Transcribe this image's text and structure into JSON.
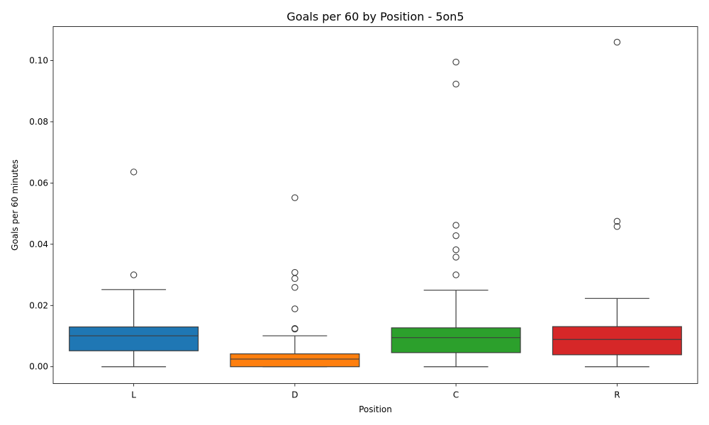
{
  "chart_data": {
    "type": "box",
    "title": "Goals per 60 by Position - 5on5",
    "xlabel": "Position",
    "ylabel": "Goals per 60 minutes",
    "ylim": [
      -0.0055,
      0.1111
    ],
    "yticks": [
      0.0,
      0.02,
      0.04,
      0.06,
      0.08,
      0.1
    ],
    "ytick_labels": [
      "0.00",
      "0.02",
      "0.04",
      "0.06",
      "0.08",
      "0.10"
    ],
    "grid": false,
    "categories": [
      "L",
      "D",
      "C",
      "R"
    ],
    "boxes": [
      {
        "category": "L",
        "color": "#1f77b4",
        "whisker_low": 0.0,
        "q1": 0.0052,
        "median": 0.0101,
        "q3": 0.013,
        "whisker_high": 0.0252,
        "outliers": [
          0.03,
          0.0636
        ]
      },
      {
        "category": "D",
        "color": "#ff7f0e",
        "whisker_low": 0.0,
        "q1": 0.0,
        "median": 0.0025,
        "q3": 0.0042,
        "whisker_high": 0.0101,
        "outliers": [
          0.0123,
          0.0125,
          0.0189,
          0.0259,
          0.0288,
          0.0308,
          0.0552
        ]
      },
      {
        "category": "C",
        "color": "#2ca02c",
        "whisker_low": 0.0,
        "q1": 0.0046,
        "median": 0.0095,
        "q3": 0.0127,
        "whisker_high": 0.025,
        "outliers": [
          0.03,
          0.0358,
          0.0382,
          0.0428,
          0.0462,
          0.0923,
          0.0995
        ]
      },
      {
        "category": "R",
        "color": "#d62728",
        "whisker_low": 0.0,
        "q1": 0.0039,
        "median": 0.0089,
        "q3": 0.0131,
        "whisker_high": 0.0223,
        "outliers": [
          0.0458,
          0.0475,
          0.106
        ]
      }
    ]
  }
}
